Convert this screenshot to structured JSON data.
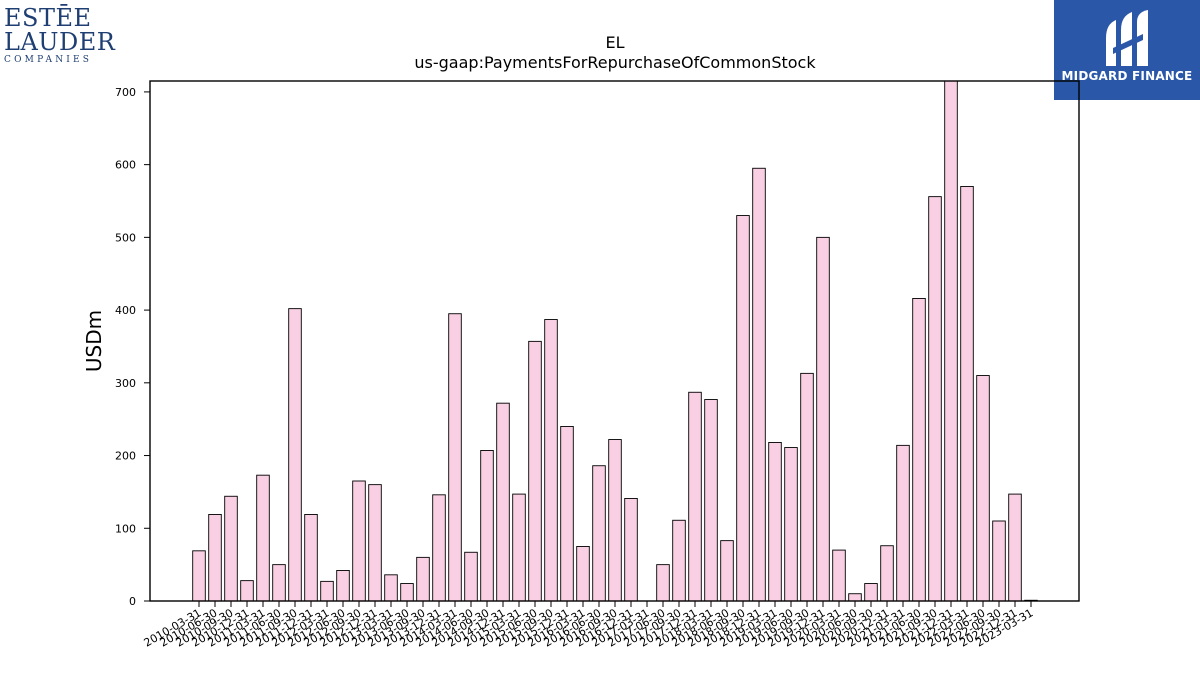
{
  "logos": {
    "left": {
      "line1": "ESTĒE",
      "line2": "LAUDER",
      "line3": "COMPANIES"
    },
    "right": {
      "brand": "MIDGARD FINANCE"
    }
  },
  "colors": {
    "bar_fill": "#f9cfe3",
    "bar_stroke": "#000000",
    "brand_blue": "#2a57a8",
    "logo_navy": "#1f3f73"
  },
  "chart_data": {
    "type": "bar",
    "title": "EL",
    "subtitle": "us-gaap:PaymentsForRepurchaseOfCommonStock",
    "xlabel": "",
    "ylabel": "USDm",
    "ylim": [
      0,
      715
    ],
    "yticks": [
      0,
      100,
      200,
      300,
      400,
      500,
      600,
      700
    ],
    "grid": false,
    "categories": [
      "2010-03-31",
      "2010-06-30",
      "2010-09-30",
      "2010-12-31",
      "2011-03-31",
      "2011-06-30",
      "2011-09-30",
      "2011-12-31",
      "2012-03-31",
      "2012-06-30",
      "2012-09-30",
      "2012-12-31",
      "2013-03-31",
      "2013-06-30",
      "2013-09-30",
      "2013-12-31",
      "2014-03-31",
      "2014-06-30",
      "2014-09-30",
      "2014-12-31",
      "2015-03-31",
      "2015-06-30",
      "2015-09-30",
      "2015-12-31",
      "2016-03-31",
      "2016-06-30",
      "2016-09-30",
      "2016-12-31",
      "2017-03-31",
      "2017-06-30",
      "2017-09-30",
      "2017-12-31",
      "2018-03-31",
      "2018-06-30",
      "2018-09-30",
      "2018-12-31",
      "2019-03-31",
      "2019-06-30",
      "2019-09-30",
      "2019-12-31",
      "2020-03-31",
      "2020-06-30",
      "2020-09-30",
      "2020-12-31",
      "2021-03-31",
      "2021-06-30",
      "2021-09-30",
      "2021-12-31",
      "2022-03-31",
      "2022-06-30",
      "2022-09-30",
      "2022-12-31",
      "2023-03-31"
    ],
    "values": [
      69,
      119,
      144,
      28,
      173,
      50,
      402,
      119,
      27,
      42,
      165,
      160,
      36,
      24,
      60,
      146,
      395,
      67,
      207,
      272,
      147,
      357,
      387,
      240,
      75,
      186,
      222,
      141,
      0,
      50,
      111,
      287,
      277,
      83,
      530,
      595,
      218,
      211,
      313,
      500,
      70,
      10,
      24,
      76,
      214,
      416,
      556,
      715,
      570,
      310,
      110,
      147,
      1
    ]
  }
}
